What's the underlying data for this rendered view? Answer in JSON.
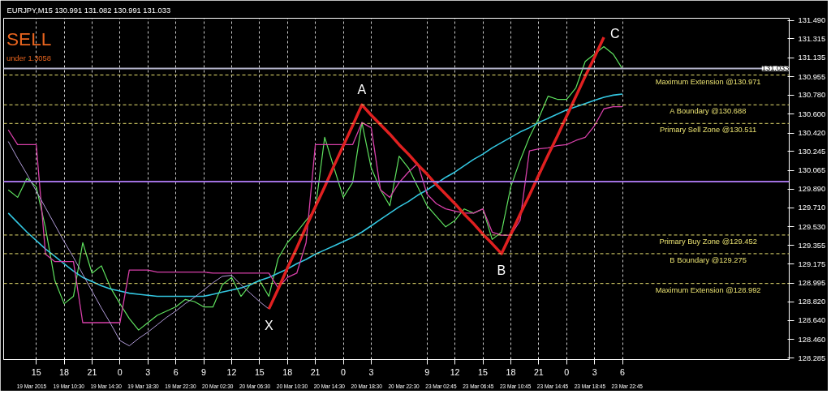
{
  "chart_data": {
    "type": "line",
    "title": "EURJPY,M15  130.991 131.082 130.991 131.033",
    "annotations": [
      "SELL",
      "under 1.3058",
      "X",
      "A",
      "B",
      "C",
      "19 Mar 2015",
      "19 Mar 10:30",
      "19 Mar 14:30",
      "19 Mar 18:30",
      "19 Mar 22:30",
      "20 Mar 02:30",
      "20 Mar 06:30",
      "20 Mar 10:30",
      "20 Mar 14:30",
      "20 Mar 18:30",
      "20 Mar 22:30",
      "23 Mar 02:45",
      "23 Mar 06:45",
      "23 Mar 10:45",
      "23 Mar 14:45",
      "23 Mar 18:45",
      "23 Mar 22:45"
    ],
    "categories": [
      null,
      null,
      null,
      "15",
      null,
      null,
      "18",
      null,
      null,
      "21",
      null,
      null,
      "0",
      null,
      null,
      "3",
      null,
      null,
      "6",
      null,
      null,
      "9",
      null,
      null,
      "12",
      null,
      null,
      "15",
      null,
      null,
      "18",
      null,
      null,
      "21",
      null,
      null,
      "0",
      null,
      null,
      "3",
      null,
      null,
      null,
      null,
      null,
      "9",
      null,
      null,
      "12",
      null,
      null,
      "15",
      null,
      null,
      "18",
      null,
      null,
      "21",
      null,
      null,
      "0",
      null,
      null,
      "3",
      null,
      null,
      "6"
    ],
    "series": [
      {
        "color": "#5ee05e",
        "values": [
          129.88,
          129.81,
          129.99,
          129.91,
          129.52,
          129.02,
          128.8,
          128.87,
          129.38,
          129.09,
          129.16,
          128.95,
          128.8,
          128.66,
          128.55,
          128.62,
          128.69,
          128.73,
          128.77,
          128.84,
          128.82,
          128.77,
          128.77,
          128.98,
          129.05,
          128.87,
          128.98,
          129.02,
          128.87,
          129.23,
          129.38,
          129.48,
          129.59,
          129.7,
          130.38,
          130.09,
          129.81,
          129.95,
          130.52,
          130.09,
          129.88,
          129.73,
          130.2,
          130.09,
          129.91,
          129.73,
          129.63,
          129.53,
          129.59,
          129.7,
          129.66,
          129.7,
          129.41,
          129.48,
          129.91,
          130.16,
          130.38,
          130.56,
          130.77,
          130.74,
          130.74,
          130.85,
          131.1,
          131.17,
          131.24,
          131.17,
          131.03
        ]
      },
      {
        "color": "#33c6e0",
        "values": [
          129.66,
          129.57,
          129.48,
          129.4,
          129.32,
          129.25,
          129.18,
          129.11,
          129.05,
          129.01,
          128.97,
          128.94,
          128.92,
          128.9,
          128.89,
          128.88,
          128.87,
          128.87,
          128.87,
          128.87,
          128.87,
          128.87,
          128.89,
          128.91,
          128.93,
          128.95,
          128.98,
          129.02,
          129.05,
          129.09,
          129.13,
          129.18,
          129.22,
          129.27,
          129.31,
          129.35,
          129.39,
          129.43,
          129.48,
          129.54,
          129.6,
          129.66,
          129.72,
          129.77,
          129.83,
          129.88,
          129.94,
          130.0,
          130.05,
          130.11,
          130.17,
          130.22,
          130.28,
          130.33,
          130.38,
          130.43,
          130.47,
          130.52,
          130.56,
          130.6,
          130.64,
          130.67,
          130.7,
          130.73,
          130.76,
          130.78,
          130.79
        ]
      },
      {
        "color": "#d63fa8",
        "values": [
          130.45,
          130.31,
          130.31,
          130.31,
          129.27,
          129.2,
          129.2,
          129.2,
          128.62,
          128.62,
          128.62,
          128.62,
          128.62,
          129.12,
          129.12,
          129.12,
          129.1,
          129.1,
          129.1,
          129.1,
          129.1,
          129.1,
          129.09,
          129.09,
          129.09,
          129.09,
          129.09,
          129.09,
          129.09,
          128.95,
          129.05,
          129.09,
          129.38,
          130.31,
          130.31,
          130.31,
          130.31,
          130.31,
          130.52,
          130.47,
          129.88,
          129.81,
          129.95,
          130.05,
          130.13,
          129.84,
          129.75,
          129.7,
          129.68,
          129.66,
          129.66,
          129.7,
          129.48,
          129.45,
          129.45,
          129.59,
          130.25,
          130.27,
          130.28,
          130.3,
          130.31,
          130.35,
          130.38,
          130.49,
          130.65,
          130.67,
          130.67
        ]
      },
      {
        "color": "#b19cd9",
        "values": [
          130.34,
          130.18,
          130.03,
          129.87,
          129.71,
          129.55,
          129.39,
          129.24,
          129.08,
          128.92,
          128.76,
          128.61,
          128.45,
          128.4,
          128.47,
          128.53,
          128.6,
          128.67,
          128.73,
          128.8,
          128.86,
          128.93,
          129.0,
          129.06,
          129.07,
          128.98,
          128.9,
          128.82,
          128.75,
          null,
          null,
          null,
          null,
          null,
          null,
          null,
          null,
          null,
          null,
          null,
          null,
          null,
          null,
          null,
          null,
          null,
          null,
          null,
          null,
          null,
          null,
          null,
          null,
          null,
          null,
          null,
          null,
          null,
          null,
          null,
          null,
          null,
          null,
          null,
          null,
          null,
          null
        ]
      },
      {
        "color": "#e02020",
        "values": [
          null,
          null,
          null,
          null,
          null,
          null,
          null,
          null,
          null,
          null,
          null,
          null,
          null,
          null,
          null,
          null,
          null,
          null,
          null,
          null,
          null,
          null,
          null,
          null,
          null,
          null,
          null,
          null,
          128.75,
          128.94,
          129.14,
          129.33,
          129.53,
          129.72,
          129.91,
          130.11,
          130.3,
          130.49,
          130.688,
          130.59,
          130.5,
          130.41,
          130.31,
          130.22,
          130.12,
          130.03,
          129.93,
          129.84,
          129.75,
          129.65,
          129.56,
          129.46,
          129.37,
          129.275,
          129.46,
          129.65,
          129.83,
          130.02,
          130.21,
          130.39,
          130.58,
          130.77,
          130.96,
          131.14,
          131.33,
          null,
          null
        ]
      }
    ],
    "ylim": [
      128.27,
      131.51
    ],
    "yticks": [
      {
        "value": 131.49,
        "label": "131.490"
      },
      131.315,
      131.135,
      130.955,
      {
        "value": 130.78,
        "label": "130.780"
      },
      {
        "value": 130.6,
        "label": "130.600"
      },
      {
        "value": 130.42,
        "label": "130.420"
      },
      130.245,
      130.065,
      {
        "value": 129.89,
        "label": "129.890"
      },
      {
        "value": 129.71,
        "label": "129.710"
      },
      {
        "value": 129.53,
        "label": "129.530"
      },
      129.355,
      129.175,
      128.995,
      {
        "value": 128.82,
        "label": "128.820"
      },
      {
        "value": 128.64,
        "label": "128.640"
      },
      {
        "value": 128.46,
        "label": "128.460"
      },
      128.285
    ],
    "ref_lines": [
      {
        "axis": "y",
        "value": 131.033,
        "label": "131.033",
        "color": "#b0b0c8",
        "line_style": "solid"
      },
      {
        "axis": "y",
        "value": 129.96,
        "color": "#a070e0",
        "line_style": "solid"
      },
      {
        "axis": "y",
        "value": 130.971,
        "label": "Maximum Extension @130.971",
        "color": "#e8e070",
        "line_style": "dashed"
      },
      {
        "axis": "y",
        "value": 130.688,
        "label": "A Boundary @130.688",
        "color": "#e8e070",
        "line_style": "dashed"
      },
      {
        "axis": "y",
        "value": 130.511,
        "label": "Primary Sell Zone @130.511",
        "color": "#e8e070",
        "line_style": "dashed"
      },
      {
        "axis": "y",
        "value": 129.452,
        "label": "Primary Buy Zone @129.452",
        "color": "#e8e070",
        "line_style": "dashed"
      },
      {
        "axis": "y",
        "value": 129.275,
        "label": "B Boundary @129.275",
        "color": "#e8e070",
        "line_style": "dashed"
      },
      {
        "axis": "y",
        "value": 128.992,
        "label": "Maximum Extension @128.992",
        "color": "#e8e070",
        "line_style": "dashed"
      }
    ],
    "grid": "x",
    "line_style": "solid",
    "marker": "none"
  }
}
